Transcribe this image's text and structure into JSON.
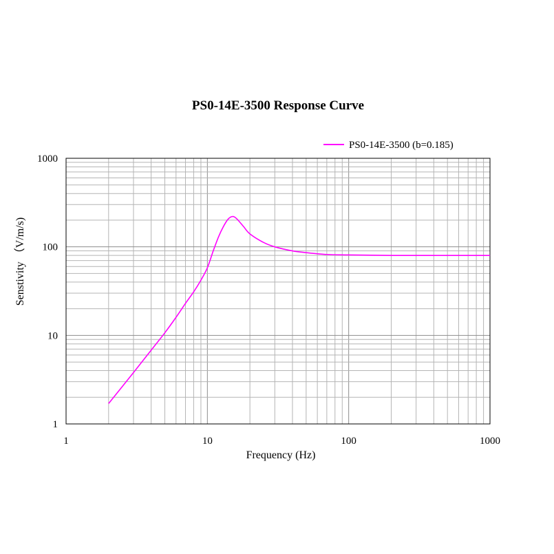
{
  "chart_data": {
    "type": "line",
    "title": "PS0-14E-3500  Response Curve",
    "xlabel": "Frequency (Hz)",
    "ylabel": "Senstivity （V/m/s)",
    "xscale": "log",
    "yscale": "log",
    "xlim": [
      1,
      1000
    ],
    "ylim": [
      1,
      1000
    ],
    "x_ticks": [
      "1",
      "10",
      "100",
      "1000"
    ],
    "y_ticks": [
      "1",
      "10",
      "100",
      "1000"
    ],
    "grid": true,
    "legend_position": "top-right",
    "series": [
      {
        "name": "PS0-14E-3500 (b=0.185)",
        "color": "#ff00ff",
        "x": [
          2,
          3,
          4,
          5,
          6,
          7,
          8,
          9,
          10,
          11,
          12,
          13,
          14,
          15,
          16,
          18,
          20,
          25,
          30,
          40,
          50,
          70,
          100,
          200,
          500,
          1000
        ],
        "y": [
          1.7,
          3.8,
          6.8,
          10.7,
          16,
          23,
          31,
          42,
          58,
          90,
          130,
          170,
          205,
          220,
          210,
          170,
          140,
          112,
          100,
          90,
          86,
          82,
          81,
          80,
          80,
          80
        ]
      }
    ]
  }
}
